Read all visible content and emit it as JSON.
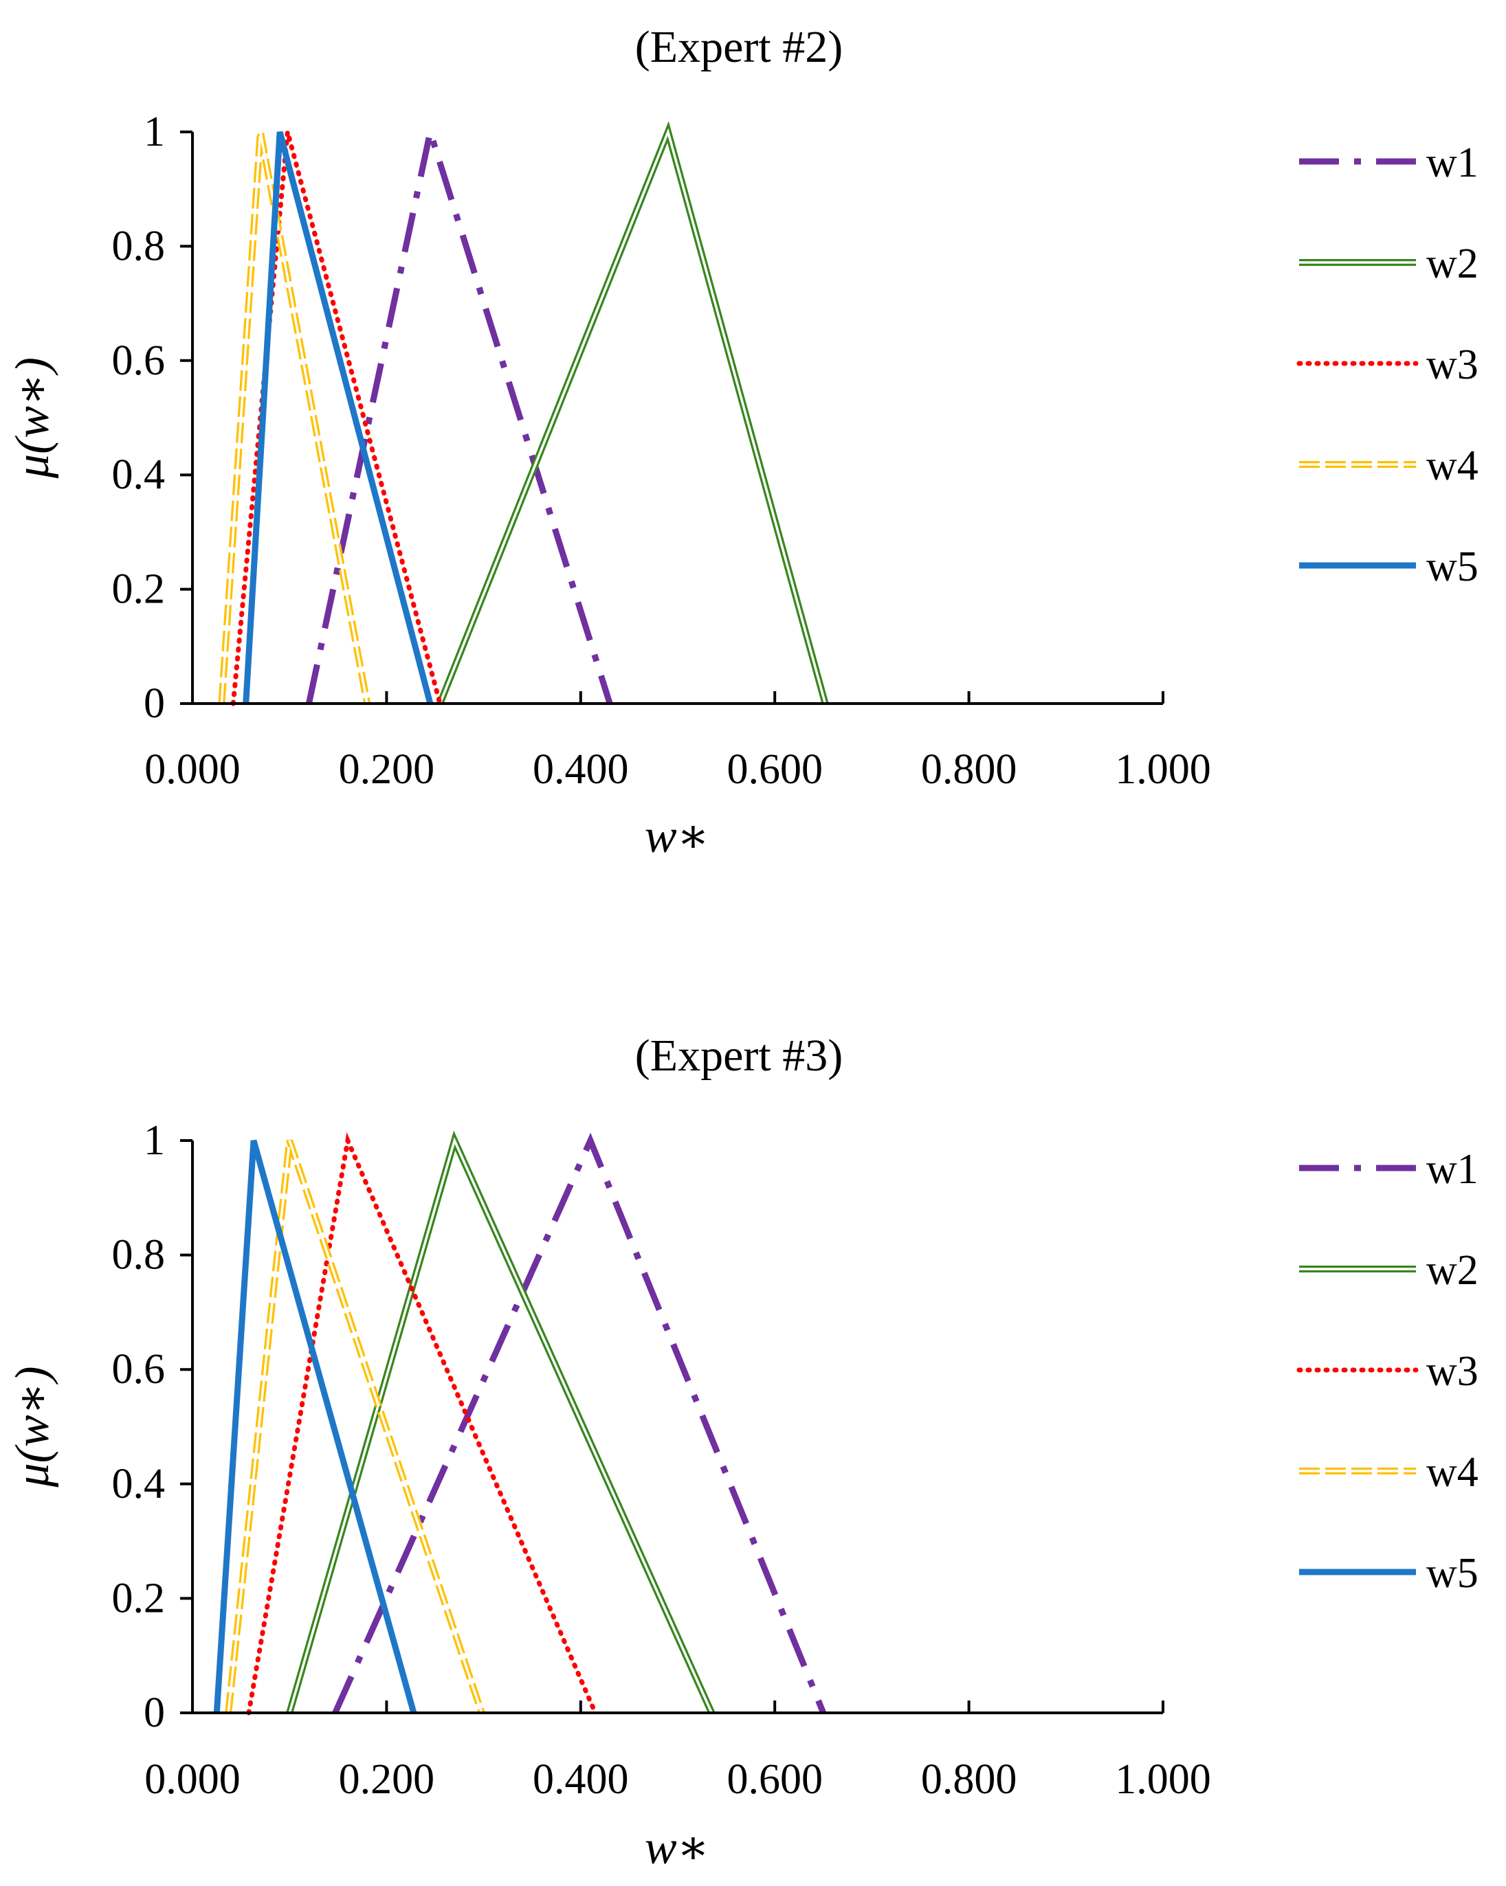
{
  "chart_data": [
    {
      "type": "line",
      "title": "(Expert #2)",
      "xlabel": "w∗",
      "ylabel": "μ(w∗)",
      "xlim": [
        0,
        1
      ],
      "ylim": [
        0,
        1
      ],
      "xticks": [
        "0.000",
        "0.200",
        "0.400",
        "0.600",
        "0.800",
        "1.000"
      ],
      "xtick_values": [
        0,
        0.2,
        0.4,
        0.6,
        0.8,
        1.0
      ],
      "yticks": [
        "0",
        "0.2",
        "0.4",
        "0.6",
        "0.8",
        "1"
      ],
      "ytick_values": [
        0,
        0.2,
        0.4,
        0.6,
        0.8,
        1
      ],
      "legend_position": "right",
      "series": [
        {
          "name": "w1",
          "color": "#7030a0",
          "style": "dash-dot",
          "x": [
            0.12,
            0.245,
            0.43
          ],
          "y": [
            0,
            1,
            0
          ]
        },
        {
          "name": "w2",
          "color": "#38861e",
          "style": "double",
          "x": [
            0.255,
            0.49,
            0.652
          ],
          "y": [
            0,
            1,
            0
          ]
        },
        {
          "name": "w3",
          "color": "#ff0000",
          "style": "dotted",
          "x": [
            0.042,
            0.098,
            0.255
          ],
          "y": [
            0,
            1,
            0
          ]
        },
        {
          "name": "w4",
          "color": "#ffc000",
          "style": "dashed-double",
          "x": [
            0.03,
            0.07,
            0.18
          ],
          "y": [
            0,
            1,
            0
          ]
        },
        {
          "name": "w5",
          "color": "#1f77c8",
          "style": "solid-thick",
          "x": [
            0.055,
            0.09,
            0.245
          ],
          "y": [
            0,
            1,
            0
          ]
        }
      ]
    },
    {
      "type": "line",
      "title": "(Expert #3)",
      "xlabel": "w∗",
      "ylabel": "μ(w∗)",
      "xlim": [
        0,
        1
      ],
      "ylim": [
        0,
        1
      ],
      "xticks": [
        "0.000",
        "0.200",
        "0.400",
        "0.600",
        "0.800",
        "1.000"
      ],
      "xtick_values": [
        0,
        0.2,
        0.4,
        0.6,
        0.8,
        1.0
      ],
      "yticks": [
        "0",
        "0.2",
        "0.4",
        "0.6",
        "0.8",
        "1"
      ],
      "ytick_values": [
        0,
        0.2,
        0.4,
        0.6,
        0.8,
        1
      ],
      "legend_position": "right",
      "series": [
        {
          "name": "w1",
          "color": "#7030a0",
          "style": "dash-dot",
          "x": [
            0.147,
            0.41,
            0.65
          ],
          "y": [
            0,
            1,
            0
          ]
        },
        {
          "name": "w2",
          "color": "#38861e",
          "style": "double",
          "x": [
            0.1,
            0.27,
            0.535
          ],
          "y": [
            0,
            1,
            0
          ]
        },
        {
          "name": "w3",
          "color": "#ff0000",
          "style": "dotted",
          "x": [
            0.058,
            0.16,
            0.415
          ],
          "y": [
            0,
            1,
            0
          ]
        },
        {
          "name": "w4",
          "color": "#ffc000",
          "style": "dashed-double",
          "x": [
            0.037,
            0.1,
            0.298
          ],
          "y": [
            0,
            1,
            0
          ]
        },
        {
          "name": "w5",
          "color": "#1f77c8",
          "style": "solid-thick",
          "x": [
            0.025,
            0.063,
            0.228
          ],
          "y": [
            0,
            1,
            0
          ]
        }
      ]
    }
  ]
}
